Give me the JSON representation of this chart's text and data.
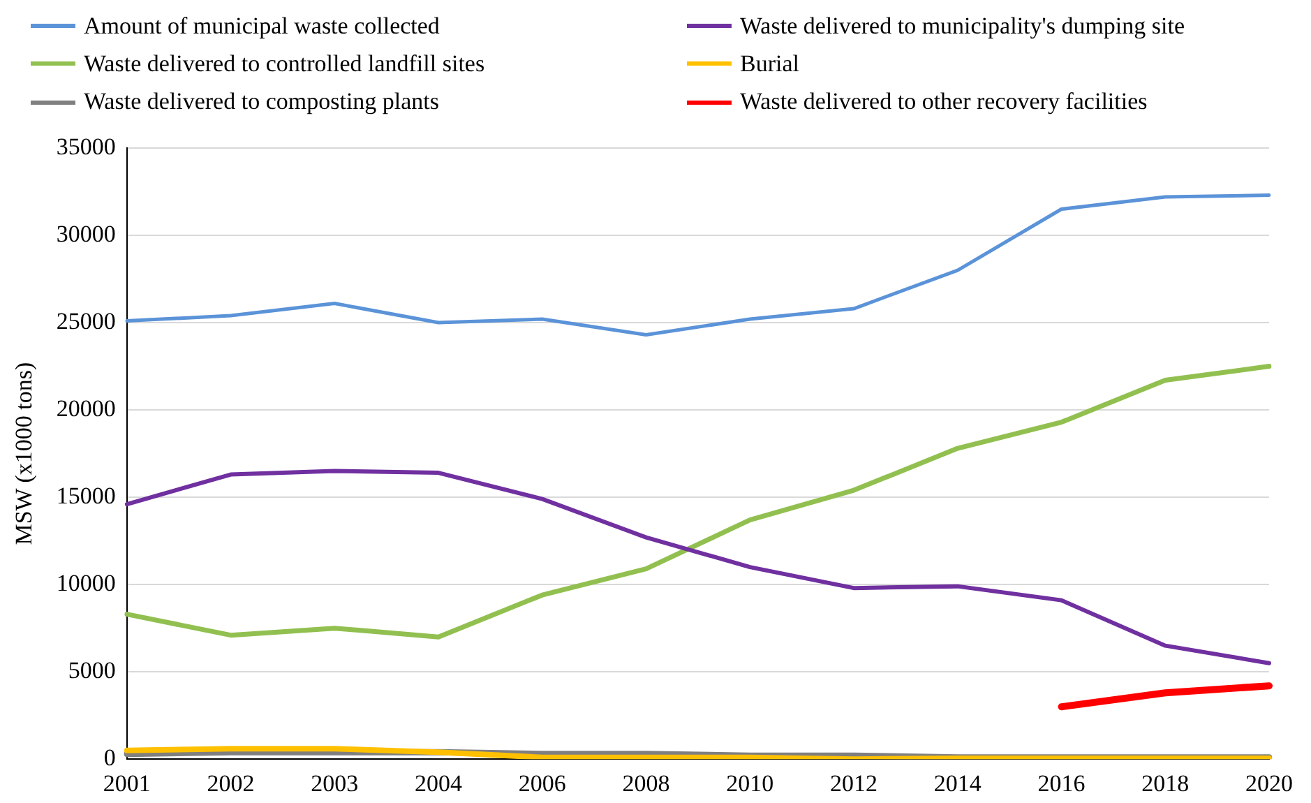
{
  "chart_data": {
    "type": "line",
    "ylabel": "MSW (x1000 tons)",
    "categories": [
      "2001",
      "2002",
      "2003",
      "2004",
      "2006",
      "2008",
      "2010",
      "2012",
      "2014",
      "2016",
      "2018",
      "2020"
    ],
    "series": [
      {
        "name": "Amount of municipal waste collected",
        "color": "#5b93d8",
        "values": [
          25100,
          25400,
          26100,
          25000,
          25200,
          24300,
          25200,
          25800,
          28000,
          31500,
          32200,
          32300
        ]
      },
      {
        "name": "Waste delivered to municipality's dumping site",
        "color": "#7030a0",
        "values": [
          14600,
          16300,
          16500,
          16400,
          14900,
          12700,
          11000,
          9800,
          9900,
          9100,
          6500,
          5500
        ]
      },
      {
        "name": "Waste delivered to controlled landfill sites",
        "color": "#92c050",
        "values": [
          8300,
          7100,
          7500,
          7000,
          9400,
          10900,
          13700,
          15400,
          17800,
          19300,
          21700,
          22500
        ]
      },
      {
        "name": "Burial",
        "color": "#ffc000",
        "values": [
          500,
          600,
          600,
          400,
          100,
          100,
          100,
          0,
          50,
          50,
          50,
          50
        ]
      },
      {
        "name": "Waste delivered to composting plants",
        "color": "#7f7f7f",
        "values": [
          300,
          400,
          400,
          400,
          300,
          300,
          200,
          200,
          100,
          100,
          100,
          100
        ]
      },
      {
        "name": "Waste delivered to other recovery facilities",
        "color": "#ff0000",
        "values": [
          null,
          null,
          null,
          null,
          null,
          null,
          null,
          null,
          null,
          3000,
          3800,
          4200
        ]
      }
    ],
    "ylim": [
      0,
      35000
    ],
    "yticks": [
      0,
      5000,
      10000,
      15000,
      20000,
      25000,
      30000,
      35000
    ],
    "grid": "y",
    "legend": "top",
    "marker": "none",
    "line_style": "solid"
  }
}
